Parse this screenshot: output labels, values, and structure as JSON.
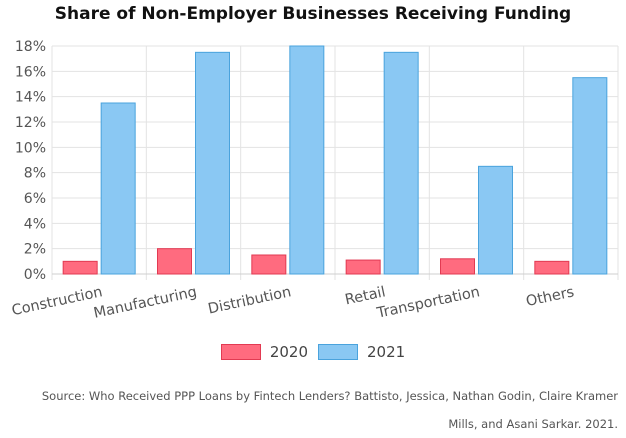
{
  "chart_data": {
    "type": "bar",
    "title": "Share of Non-Employer Businesses Receiving Funding",
    "categories": [
      "Construction",
      "Manufacturing",
      "Distribution",
      "Retail",
      "Transportation",
      "Others"
    ],
    "series": [
      {
        "name": "2020",
        "values": [
          1.0,
          2.0,
          1.5,
          1.1,
          1.2,
          1.0
        ],
        "color": "#ff6b7f",
        "border": "#e23a52"
      },
      {
        "name": "2021",
        "values": [
          13.5,
          17.5,
          18.0,
          17.5,
          8.5,
          15.5
        ],
        "color": "#8ac8f3",
        "border": "#4aa3dd"
      }
    ],
    "xlabel": "",
    "ylabel": "",
    "ylim": [
      0,
      18
    ],
    "ytick_step": 2,
    "ytick_suffix": "%",
    "grid": true,
    "legend_position": "bottom"
  },
  "source_text": "Source: Who Received PPP Loans by Fintech Lenders? Battisto, Jessica, Nathan Godin, Claire Kramer Mills, and Asani Sarkar. 2021."
}
